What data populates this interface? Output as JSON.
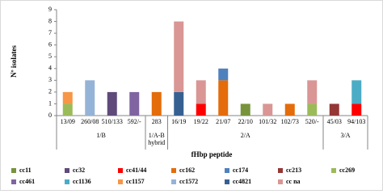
{
  "chart_data": {
    "type": "bar",
    "stacked": true,
    "y_label": "Nº isolates",
    "x_label": "fHbp peptide",
    "groups": [
      {
        "label": "1/B",
        "categories": [
          "13/09",
          "260/08",
          "510/133",
          "592/-"
        ]
      },
      {
        "label": "1/A-B hybrid",
        "categories": [
          "283"
        ]
      },
      {
        "label": "2/A",
        "categories": [
          "16/19",
          "19/22",
          "21/07",
          "22/10",
          "101/32",
          "102/73",
          "520/-"
        ]
      },
      {
        "label": "3/A",
        "categories": [
          "45/03",
          "94/103"
        ]
      }
    ],
    "series": [
      {
        "name": "cc11",
        "color": "#77933c",
        "values": [
          null,
          null,
          null,
          null,
          null,
          null,
          null,
          null,
          1,
          null,
          null,
          null,
          null,
          null
        ]
      },
      {
        "name": "cc32",
        "color": "#604a7b",
        "values": [
          null,
          null,
          2,
          null,
          null,
          null,
          null,
          null,
          null,
          null,
          null,
          null,
          null,
          null
        ]
      },
      {
        "name": "cc41/44",
        "color": "#ff0000",
        "values": [
          null,
          null,
          null,
          null,
          null,
          null,
          1,
          null,
          null,
          null,
          null,
          null,
          null,
          1
        ]
      },
      {
        "name": "cc162",
        "color": "#e46c0a",
        "values": [
          null,
          null,
          null,
          null,
          2,
          null,
          null,
          3,
          null,
          null,
          1,
          null,
          null,
          null
        ]
      },
      {
        "name": "cc174",
        "color": "#4f81bd",
        "values": [
          null,
          null,
          null,
          null,
          null,
          null,
          null,
          1,
          null,
          null,
          null,
          null,
          null,
          null
        ]
      },
      {
        "name": "cc213",
        "color": "#953735",
        "values": [
          null,
          null,
          null,
          null,
          null,
          null,
          null,
          null,
          null,
          null,
          null,
          null,
          1,
          null
        ]
      },
      {
        "name": "cc269",
        "color": "#9bbb59",
        "values": [
          1,
          null,
          null,
          null,
          null,
          null,
          null,
          null,
          null,
          null,
          null,
          1,
          null,
          null
        ]
      },
      {
        "name": "cc461",
        "color": "#8064a2",
        "values": [
          null,
          null,
          null,
          2,
          null,
          null,
          null,
          null,
          null,
          null,
          null,
          null,
          null,
          null
        ]
      },
      {
        "name": "cc1136",
        "color": "#4bacc6",
        "values": [
          null,
          null,
          null,
          null,
          null,
          null,
          null,
          null,
          null,
          null,
          null,
          null,
          null,
          2
        ]
      },
      {
        "name": "cc1157",
        "color": "#f79646",
        "values": [
          1,
          null,
          null,
          null,
          null,
          null,
          null,
          null,
          null,
          null,
          null,
          null,
          null,
          null
        ]
      },
      {
        "name": "cc1572",
        "color": "#95b3d7",
        "values": [
          null,
          3,
          null,
          null,
          null,
          null,
          null,
          null,
          null,
          null,
          null,
          null,
          null,
          null
        ]
      },
      {
        "name": "cc4821",
        "color": "#366092",
        "values": [
          null,
          null,
          null,
          null,
          null,
          2,
          null,
          null,
          null,
          null,
          null,
          null,
          null,
          null
        ]
      },
      {
        "name": "cc na",
        "color": "#d99694",
        "values": [
          null,
          null,
          null,
          null,
          null,
          6,
          2,
          null,
          null,
          1,
          null,
          2,
          null,
          null
        ]
      }
    ],
    "ylim": [
      0,
      9
    ],
    "yticks": [
      0,
      1,
      2,
      3,
      4,
      5,
      6,
      7,
      8,
      9
    ]
  }
}
